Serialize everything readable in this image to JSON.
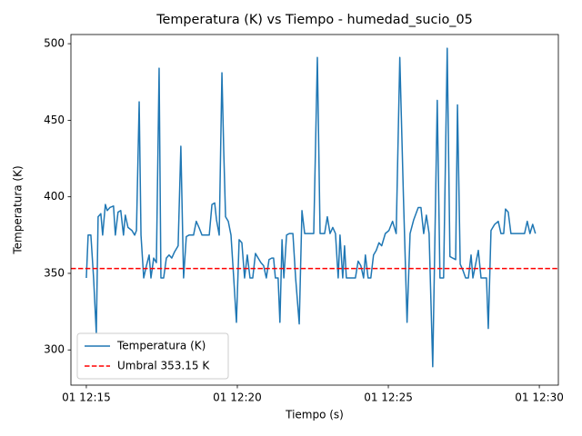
{
  "chart_data": {
    "type": "line",
    "title": "Temperatura (K) vs Tiempo - humedad_sucio_05",
    "xlabel": "Tiempo (s)",
    "ylabel": "Temperatura (K)",
    "x": [
      15.0,
      15.06,
      15.15,
      15.24,
      15.33,
      15.39,
      15.48,
      15.54,
      15.63,
      15.69,
      15.78,
      15.9,
      15.96,
      16.05,
      16.14,
      16.23,
      16.29,
      16.38,
      16.51,
      16.6,
      16.66,
      16.75,
      16.81,
      16.9,
      16.99,
      17.08,
      17.14,
      17.23,
      17.32,
      17.41,
      17.47,
      17.56,
      17.65,
      17.74,
      17.83,
      17.92,
      18.04,
      18.13,
      18.22,
      18.31,
      18.4,
      18.55,
      18.64,
      18.73,
      18.83,
      18.98,
      19.07,
      19.16,
      19.25,
      19.31,
      19.4,
      19.49,
      19.55,
      19.61,
      19.7,
      19.79,
      19.88,
      19.97,
      20.06,
      20.15,
      20.24,
      20.33,
      20.42,
      20.51,
      20.6,
      20.69,
      20.78,
      20.87,
      20.96,
      21.05,
      21.14,
      21.2,
      21.26,
      21.35,
      21.41,
      21.48,
      21.54,
      21.63,
      21.72,
      21.84,
      21.93,
      22.05,
      22.14,
      22.23,
      22.38,
      22.53,
      22.65,
      22.74,
      22.89,
      22.98,
      23.07,
      23.16,
      23.25,
      23.34,
      23.4,
      23.49,
      23.55,
      23.61,
      23.76,
      23.91,
      24.0,
      24.09,
      24.18,
      24.24,
      24.33,
      24.42,
      24.51,
      24.6,
      24.69,
      24.78,
      24.9,
      25.02,
      25.14,
      25.26,
      25.38,
      25.5,
      25.62,
      25.72,
      25.84,
      25.99,
      26.08,
      26.17,
      26.26,
      26.35,
      26.47,
      26.62,
      26.71,
      26.83,
      26.95,
      27.04,
      27.13,
      27.23,
      27.29,
      27.38,
      27.47,
      27.56,
      27.65,
      27.74,
      27.8,
      27.89,
      27.98,
      28.07,
      28.16,
      28.25,
      28.31,
      28.4,
      28.52,
      28.64,
      28.73,
      28.82,
      28.88,
      28.97,
      29.06,
      29.21,
      29.36,
      29.51,
      29.6,
      29.69,
      29.78,
      29.87
    ],
    "series": [
      {
        "name": "Temperatura (K)",
        "color": "#1f77b4",
        "values": [
          347,
          375,
          375,
          347,
          311,
          387,
          389,
          375,
          395,
          391,
          393,
          394,
          375,
          390,
          391,
          375,
          388,
          380,
          378,
          375,
          378,
          462,
          375,
          347,
          355,
          362,
          347,
          360,
          357,
          484,
          347,
          347,
          360,
          362,
          360,
          364,
          368,
          433,
          347,
          374,
          375,
          375,
          384,
          380,
          375,
          375,
          375,
          395,
          396,
          385,
          375,
          481,
          430,
          387,
          384,
          375,
          347,
          318,
          372,
          370,
          347,
          362,
          347,
          347,
          363,
          360,
          357,
          355,
          347,
          359,
          360,
          360,
          347,
          347,
          318,
          372,
          347,
          375,
          376,
          376,
          347,
          317,
          391,
          376,
          376,
          376,
          491,
          376,
          376,
          387,
          376,
          380,
          376,
          347,
          375,
          347,
          368,
          347,
          347,
          347,
          358,
          355,
          347,
          362,
          347,
          347,
          362,
          365,
          370,
          368,
          376,
          378,
          384,
          376,
          491,
          400,
          318,
          376,
          385,
          393,
          393,
          376,
          388,
          376,
          289,
          463,
          347,
          347,
          497,
          361,
          360,
          359,
          460,
          356,
          352,
          347,
          347,
          362,
          347,
          356,
          365,
          347,
          347,
          347,
          314,
          378,
          382,
          384,
          376,
          376,
          392,
          390,
          376,
          376,
          376,
          376,
          384,
          376,
          382,
          376
        ]
      }
    ],
    "threshold": {
      "name": "Umbral 353.15 K",
      "value": 353.15,
      "color": "#ff0000",
      "linestyle": "dashed"
    },
    "xlim": [
      14.49,
      30.63
    ],
    "xticks": [
      {
        "value": 15,
        "label": "01 12:15"
      },
      {
        "value": 20,
        "label": "01 12:20"
      },
      {
        "value": 25,
        "label": "01 12:25"
      },
      {
        "value": 30,
        "label": "01 12:30"
      }
    ],
    "ylim": [
      277,
      506
    ],
    "yticks": [
      300,
      350,
      400,
      450,
      500
    ],
    "grid": false,
    "legend": "lower left"
  }
}
